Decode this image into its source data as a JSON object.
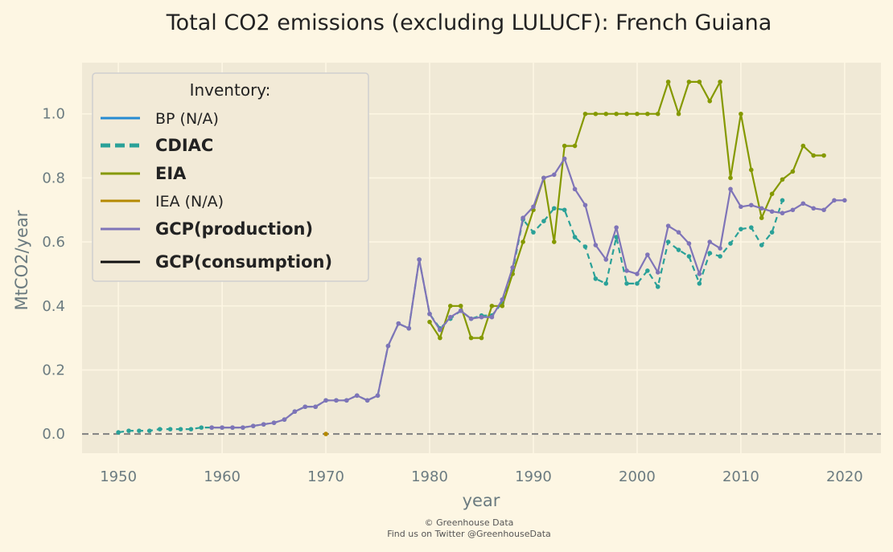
{
  "chart_data": {
    "type": "line",
    "title": "Total CO2 emissions (excluding LULUCF): French Guiana",
    "xlabel": "year",
    "ylabel": "MtCO2/year",
    "xlim": [
      1946.5,
      2023.5
    ],
    "ylim": [
      -0.06,
      1.16
    ],
    "xticks": [
      1950,
      1960,
      1970,
      1980,
      1990,
      2000,
      2010,
      2020
    ],
    "yticks": [
      0.0,
      0.2,
      0.4,
      0.6,
      0.8,
      1.0
    ],
    "ytick_labels": [
      "0.0",
      "0.2",
      "0.4",
      "0.6",
      "0.8",
      "1.0"
    ],
    "grid": true,
    "background": "#f0e9d6",
    "zero_line": {
      "y": 0,
      "color": "#808080",
      "style": "dashed"
    },
    "legend": {
      "title": "Inventory:",
      "position": "top-left",
      "entries": [
        {
          "label": "BP (N/A)",
          "color": "#268bd2",
          "style": "solid",
          "bold": false
        },
        {
          "label": "CDIAC",
          "color": "#2aa198",
          "style": "dashed",
          "bold": true
        },
        {
          "label": "EIA",
          "color": "#859900",
          "style": "solid",
          "bold": true
        },
        {
          "label": "IEA (N/A)",
          "color": "#b58900",
          "style": "solid",
          "bold": false
        },
        {
          "label": "GCP(production)",
          "color": "#7f74b8",
          "style": "solid",
          "bold": true
        },
        {
          "label": "GCP(consumption)",
          "color": "#111111",
          "style": "solid",
          "bold": true
        }
      ]
    },
    "series": [
      {
        "name": "CDIAC",
        "color": "#2aa198",
        "style": "dashed",
        "x": [
          1950,
          1951,
          1952,
          1953,
          1954,
          1955,
          1956,
          1957,
          1958,
          1959,
          1960,
          1961,
          1962,
          1963,
          1964,
          1965,
          1966,
          1967,
          1968,
          1969,
          1970,
          1971,
          1972,
          1973,
          1974,
          1975,
          1976,
          1977,
          1978,
          1979,
          1980,
          1981,
          1982,
          1983,
          1984,
          1985,
          1986,
          1987,
          1988,
          1989,
          1990,
          1991,
          1992,
          1993,
          1994,
          1995,
          1996,
          1997,
          1998,
          1999,
          2000,
          2001,
          2002,
          2003,
          2004,
          2005,
          2006,
          2007,
          2008,
          2009,
          2010,
          2011,
          2012,
          2013,
          2014
        ],
        "y": [
          0.005,
          0.01,
          0.01,
          0.01,
          0.015,
          0.015,
          0.015,
          0.015,
          0.02,
          0.02,
          0.02,
          0.02,
          0.02,
          0.025,
          0.03,
          0.035,
          0.045,
          0.07,
          0.085,
          0.085,
          0.105,
          0.105,
          0.105,
          0.12,
          0.105,
          0.12,
          0.275,
          0.345,
          0.33,
          0.545,
          0.375,
          0.33,
          0.36,
          0.385,
          0.36,
          0.37,
          0.37,
          0.41,
          0.51,
          0.67,
          0.63,
          0.665,
          0.705,
          0.7,
          0.615,
          0.585,
          0.485,
          0.47,
          0.615,
          0.47,
          0.47,
          0.51,
          0.46,
          0.6,
          0.575,
          0.555,
          0.47,
          0.565,
          0.555,
          0.595,
          0.64,
          0.645,
          0.59,
          0.63,
          0.73
        ]
      },
      {
        "name": "EIA",
        "color": "#859900",
        "style": "solid",
        "x": [
          1980,
          1981,
          1982,
          1983,
          1984,
          1985,
          1986,
          1987,
          1988,
          1989,
          1990,
          1991,
          1992,
          1993,
          1994,
          1995,
          1996,
          1997,
          1998,
          1999,
          2000,
          2001,
          2002,
          2003,
          2004,
          2005,
          2006,
          2007,
          2008,
          2009,
          2010,
          2011,
          2012,
          2013,
          2014,
          2015,
          2016,
          2017,
          2018
        ],
        "y": [
          0.35,
          0.3,
          0.4,
          0.4,
          0.3,
          0.3,
          0.4,
          0.4,
          0.5,
          0.6,
          0.7,
          0.8,
          0.6,
          0.9,
          0.9,
          1.0,
          1.0,
          1.0,
          1.0,
          1.0,
          1.0,
          1.0,
          1.0,
          1.1,
          1.0,
          1.1,
          1.1,
          1.04,
          1.1,
          0.8,
          1.0,
          0.825,
          0.675,
          0.75,
          0.795,
          0.82,
          0.9,
          0.87,
          0.87
        ]
      },
      {
        "name": "IEA (N/A)",
        "color": "#b58900",
        "style": "solid",
        "x": [
          1970
        ],
        "y": [
          0.0
        ]
      },
      {
        "name": "GCP(production)",
        "color": "#7f74b8",
        "style": "solid",
        "x": [
          1959,
          1960,
          1961,
          1962,
          1963,
          1964,
          1965,
          1966,
          1967,
          1968,
          1969,
          1970,
          1971,
          1972,
          1973,
          1974,
          1975,
          1976,
          1977,
          1978,
          1979,
          1980,
          1981,
          1982,
          1983,
          1984,
          1985,
          1986,
          1987,
          1988,
          1989,
          1990,
          1991,
          1992,
          1993,
          1994,
          1995,
          1996,
          1997,
          1998,
          1999,
          2000,
          2001,
          2002,
          2003,
          2004,
          2005,
          2006,
          2007,
          2008,
          2009,
          2010,
          2011,
          2012,
          2013,
          2014,
          2015,
          2016,
          2017,
          2018,
          2019,
          2020
        ],
        "y": [
          0.02,
          0.02,
          0.02,
          0.02,
          0.025,
          0.03,
          0.035,
          0.045,
          0.07,
          0.085,
          0.085,
          0.105,
          0.105,
          0.105,
          0.12,
          0.105,
          0.12,
          0.275,
          0.345,
          0.33,
          0.545,
          0.375,
          0.325,
          0.365,
          0.385,
          0.36,
          0.365,
          0.365,
          0.42,
          0.52,
          0.675,
          0.71,
          0.8,
          0.81,
          0.86,
          0.765,
          0.715,
          0.59,
          0.545,
          0.645,
          0.51,
          0.5,
          0.56,
          0.505,
          0.65,
          0.63,
          0.595,
          0.5,
          0.6,
          0.58,
          0.765,
          0.71,
          0.715,
          0.705,
          0.695,
          0.69,
          0.7,
          0.72,
          0.705,
          0.7,
          0.73,
          0.73
        ]
      }
    ]
  },
  "footer": {
    "line1": "© Greenhouse Data",
    "line2": "Find us on Twitter @GreenhouseData"
  }
}
